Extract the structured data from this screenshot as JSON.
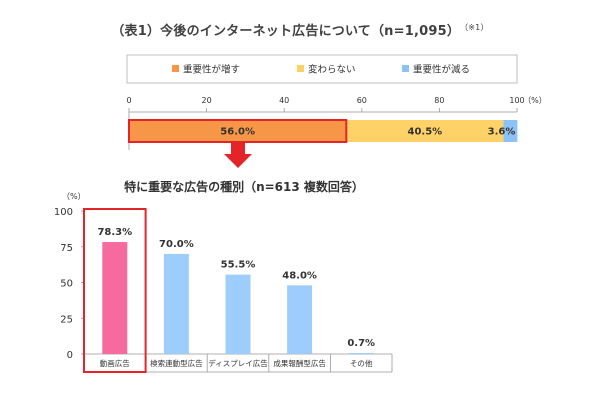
{
  "title": "（表1）今後のインターネット広告について（n=1,095）",
  "title_note": "（※1）",
  "colors": {
    "orange": "#F79646",
    "yellow": "#FFD268",
    "blue": "#8CC2F5",
    "pink": "#F76AA0",
    "light_blue": "#9DCDFC",
    "highlight": "#E5242A",
    "arrow": "#E5242A"
  },
  "chart_data": [
    {
      "type": "bar",
      "orientation": "horizontal-stacked",
      "title": "",
      "categories": [
        ""
      ],
      "series": [
        {
          "name": "重要性が増す",
          "values": [
            56.0
          ],
          "label": "56.0%",
          "color": "#F79646"
        },
        {
          "name": "変わらない",
          "values": [
            40.5
          ],
          "label": "40.5%",
          "color": "#FFD268"
        },
        {
          "name": "重要性が減る",
          "values": [
            3.6
          ],
          "label": "3.6%",
          "color": "#8CC2F5"
        }
      ],
      "xlim": [
        0,
        100
      ],
      "xticks": [
        "0",
        "20",
        "40",
        "60",
        "80",
        "100"
      ],
      "xunit": "（%）",
      "legend": "top",
      "highlight_series": 0
    },
    {
      "type": "bar",
      "title": "特に重要な広告の種別（n=613 複数回答）",
      "yunit": "（%）",
      "categories": [
        "動画広告",
        "検索連動型広告",
        "ディスプレイ広告",
        "成果報酬型広告",
        "その他"
      ],
      "values": [
        78.3,
        70.0,
        55.5,
        48.0,
        0.7
      ],
      "labels": [
        "78.3%",
        "70.0%",
        "55.5%",
        "48.0%",
        "0.7%"
      ],
      "ylim": [
        0,
        100
      ],
      "yticks": [
        "0",
        "25",
        "50",
        "75",
        "100"
      ],
      "highlight_index": 0
    }
  ]
}
